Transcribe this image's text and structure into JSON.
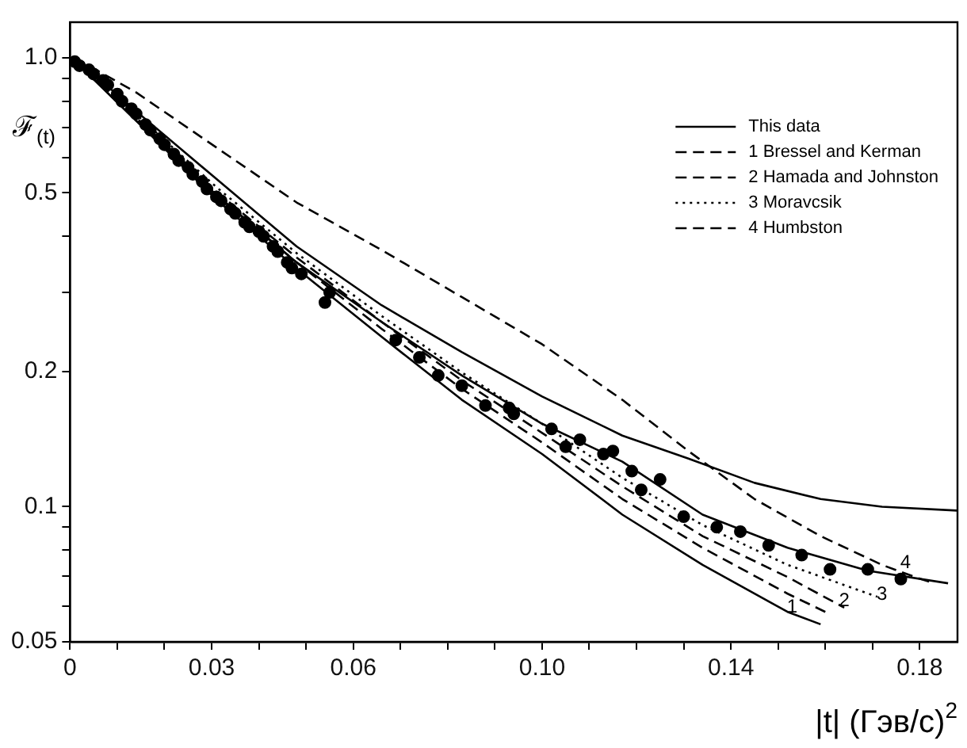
{
  "chart_data": {
    "type": "line",
    "xlabel": "|t| (Гэв/c)$^{2}$",
    "ylabel": "ℱ$_{(t)}$",
    "log": "y",
    "grid": false,
    "legend": "top right",
    "marker": "none",
    "xlim": [
      0,
      0.188
    ],
    "ylim": [
      0.05,
      1.2
    ],
    "xticks": [
      0,
      {
        "value": 0.01,
        "label": null
      },
      {
        "value": 0.02,
        "label": null
      },
      0.03,
      {
        "value": 0.04,
        "label": null
      },
      {
        "value": 0.05,
        "label": null
      },
      0.06,
      {
        "value": 0.07,
        "label": null
      },
      {
        "value": 0.08,
        "label": null
      },
      {
        "value": 0.09,
        "label": null
      },
      {
        "value": 0.1,
        "label": "0.10"
      },
      {
        "value": 0.11,
        "label": null
      },
      {
        "value": 0.12,
        "label": null
      },
      {
        "value": 0.13,
        "label": null
      },
      0.14,
      {
        "value": 0.15,
        "label": null
      },
      {
        "value": 0.16,
        "label": null
      },
      {
        "value": 0.17,
        "label": null
      },
      0.18
    ],
    "yticks": [
      0.05,
      {
        "value": 0.06,
        "label": null
      },
      {
        "value": 0.07,
        "label": null
      },
      {
        "value": 0.08,
        "label": null
      },
      {
        "value": 0.09,
        "label": null
      },
      0.1,
      0.2,
      {
        "value": 0.3,
        "label": null
      },
      {
        "value": 0.4,
        "label": null
      },
      0.5,
      {
        "value": 0.6,
        "label": null
      },
      {
        "value": 0.7,
        "label": null
      },
      {
        "value": 0.8,
        "label": null
      },
      {
        "value": 0.9,
        "label": null
      },
      {
        "value": 1.0,
        "label": "1.0"
      }
    ],
    "annotations": [
      {
        "text": "1",
        "x": 0.153,
        "y": 0.058
      },
      {
        "text": "2",
        "x": 0.164,
        "y": 0.06
      },
      {
        "text": "3",
        "x": 0.172,
        "y": 0.062
      },
      {
        "text": "4",
        "x": 0.177,
        "y": 0.073
      }
    ],
    "series": [
      {
        "type": "scatter",
        "marker": "circle",
        "color": "#000000",
        "x": [
          0.001,
          0.002,
          0.004,
          0.005,
          0.007,
          0.008,
          0.01,
          0.011,
          0.013,
          0.014,
          0.016,
          0.017,
          0.019,
          0.02,
          0.022,
          0.023,
          0.025,
          0.026,
          0.028,
          0.029,
          0.031,
          0.032,
          0.034,
          0.035,
          0.037,
          0.038,
          0.04,
          0.041,
          0.043,
          0.044,
          0.046,
          0.047,
          0.049,
          0.054,
          0.055,
          0.069,
          0.074,
          0.078,
          0.083,
          0.088,
          0.093,
          0.094,
          0.102,
          0.105,
          0.108,
          0.113,
          0.115,
          0.119,
          0.121,
          0.125,
          0.13,
          0.137,
          0.142,
          0.148,
          0.155,
          0.161,
          0.169,
          0.176
        ],
        "values": [
          0.98,
          0.96,
          0.94,
          0.92,
          0.89,
          0.87,
          0.83,
          0.8,
          0.77,
          0.75,
          0.71,
          0.69,
          0.66,
          0.64,
          0.61,
          0.59,
          0.57,
          0.55,
          0.53,
          0.51,
          0.49,
          0.48,
          0.46,
          0.45,
          0.43,
          0.42,
          0.41,
          0.4,
          0.38,
          0.37,
          0.35,
          0.34,
          0.33,
          0.285,
          0.3,
          0.235,
          0.215,
          0.196,
          0.186,
          0.168,
          0.166,
          0.161,
          0.149,
          0.136,
          0.141,
          0.131,
          0.133,
          0.12,
          0.109,
          0.115,
          0.095,
          0.09,
          0.088,
          0.082,
          0.078,
          0.0725,
          0.0725,
          0.069
        ]
      },
      {
        "name": "This data",
        "line_style": "solid",
        "color": "#000000",
        "x": [
          0.001,
          0.014,
          0.031,
          0.048,
          0.066,
          0.083,
          0.1,
          0.117,
          0.134,
          0.152,
          0.169,
          0.186
        ],
        "values": [
          0.984,
          0.724,
          0.495,
          0.35,
          0.258,
          0.196,
          0.153,
          0.126,
          0.096,
          0.081,
          0.072,
          0.0675
        ]
      },
      {
        "name": "1 Bressel and Kerman",
        "line_style": "dashed",
        "color": "#000000",
        "x": [
          0.001,
          0.014,
          0.031,
          0.048,
          0.066,
          0.083,
          0.1,
          0.117,
          0.134,
          0.152,
          0.16
        ],
        "values": [
          0.984,
          0.73,
          0.495,
          0.35,
          0.249,
          0.183,
          0.139,
          0.104,
          0.081,
          0.064,
          0.0583
        ]
      },
      {
        "name": "2 Hamada and Johnston",
        "line_style": "dashed",
        "color": "#000000",
        "x": [
          0.001,
          0.014,
          0.031,
          0.048,
          0.066,
          0.083,
          0.1,
          0.117,
          0.134,
          0.152,
          0.164
        ],
        "values": [
          0.984,
          0.736,
          0.503,
          0.359,
          0.258,
          0.191,
          0.146,
          0.111,
          0.086,
          0.0697,
          0.0596
        ]
      },
      {
        "name": "3 Moravcsik",
        "line_style": "dotted",
        "color": "#000000",
        "x": [
          0.001,
          0.014,
          0.031,
          0.048,
          0.066,
          0.083,
          0.1,
          0.117,
          0.134,
          0.152,
          0.171
        ],
        "values": [
          0.984,
          0.748,
          0.515,
          0.367,
          0.266,
          0.199,
          0.153,
          0.116,
          0.091,
          0.0742,
          0.063
        ]
      },
      {
        "name": "4 Humbston",
        "line_style": "dashed",
        "color": "#000000",
        "x": [
          0.001,
          0.014,
          0.031,
          0.048,
          0.066,
          0.083,
          0.1,
          0.117,
          0.131,
          0.145,
          0.159,
          0.172,
          0.179,
          0.183
        ],
        "values": [
          1.0,
          0.837,
          0.631,
          0.476,
          0.373,
          0.293,
          0.23,
          0.173,
          0.133,
          0.104,
          0.086,
          0.0742,
          0.0697,
          0.0675
        ]
      },
      {
        "line_style": "solid",
        "color": "#000000",
        "x": [
          0.001,
          0.014,
          0.031,
          0.048,
          0.066,
          0.083,
          0.1,
          0.117,
          0.131,
          0.145,
          0.159,
          0.172,
          0.188
        ],
        "values": [
          1.0,
          0.76,
          0.537,
          0.38,
          0.281,
          0.221,
          0.176,
          0.144,
          0.128,
          0.113,
          0.104,
          0.1,
          0.098
        ]
      },
      {
        "line_style": "solid",
        "color": "#000000",
        "x": [
          0.001,
          0.014,
          0.031,
          0.048,
          0.066,
          0.083,
          0.1,
          0.117,
          0.134,
          0.152,
          0.159
        ],
        "values": [
          0.984,
          0.724,
          0.483,
          0.339,
          0.239,
          0.173,
          0.131,
          0.096,
          0.0742,
          0.0583,
          0.0547
        ]
      }
    ]
  }
}
